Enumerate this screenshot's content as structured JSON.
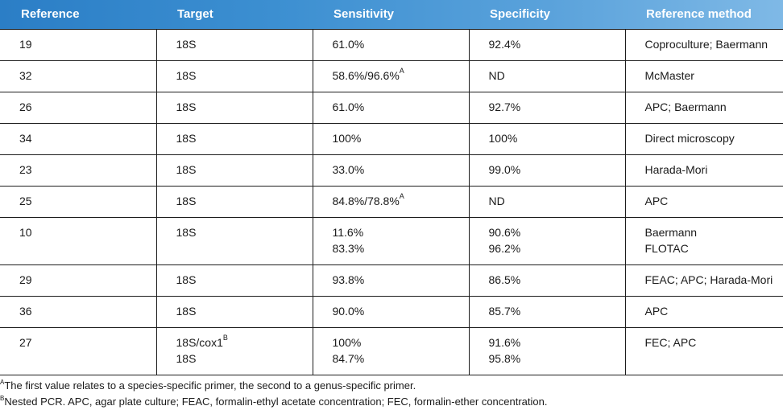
{
  "table": {
    "headers": [
      "Reference",
      "Target",
      "Sensitivity",
      "Specificity",
      "Reference method"
    ],
    "rows": [
      {
        "ref": "19",
        "target": "18S",
        "target_sup": "",
        "target2": "",
        "sens": "61.0%",
        "sens_sup": "",
        "sens2": "",
        "spec": "92.4%",
        "spec2": "",
        "method": "Coproculture; Baermann",
        "method2": ""
      },
      {
        "ref": "32",
        "target": "18S",
        "target_sup": "",
        "target2": "",
        "sens": "58.6%/96.6%",
        "sens_sup": "A",
        "sens2": "",
        "spec": "ND",
        "spec2": "",
        "method": "McMaster",
        "method2": ""
      },
      {
        "ref": "26",
        "target": "18S",
        "target_sup": "",
        "target2": "",
        "sens": "61.0%",
        "sens_sup": "",
        "sens2": "",
        "spec": "92.7%",
        "spec2": "",
        "method": "APC; Baermann",
        "method2": ""
      },
      {
        "ref": "34",
        "target": "18S",
        "target_sup": "",
        "target2": "",
        "sens": "100%",
        "sens_sup": "",
        "sens2": "",
        "spec": "100%",
        "spec2": "",
        "method": "Direct microscopy",
        "method2": ""
      },
      {
        "ref": "23",
        "target": "18S",
        "target_sup": "",
        "target2": "",
        "sens": "33.0%",
        "sens_sup": "",
        "sens2": "",
        "spec": "99.0%",
        "spec2": "",
        "method": "Harada-Mori",
        "method2": ""
      },
      {
        "ref": "25",
        "target": "18S",
        "target_sup": "",
        "target2": "",
        "sens": "84.8%/78.8%",
        "sens_sup": "A",
        "sens2": "",
        "spec": "ND",
        "spec2": "",
        "method": "APC",
        "method2": ""
      },
      {
        "ref": "10",
        "target": "18S",
        "target_sup": "",
        "target2": "",
        "sens": "11.6%",
        "sens_sup": "",
        "sens2": "83.3%",
        "spec": "90.6%",
        "spec2": "96.2%",
        "method": "Baermann",
        "method2": "FLOTAC"
      },
      {
        "ref": "29",
        "target": "18S",
        "target_sup": "",
        "target2": "",
        "sens": "93.8%",
        "sens_sup": "",
        "sens2": "",
        "spec": "86.5%",
        "spec2": "",
        "method": "FEAC; APC; Harada-Mori",
        "method2": ""
      },
      {
        "ref": "36",
        "target": "18S",
        "target_sup": "",
        "target2": "",
        "sens": "90.0%",
        "sens_sup": "",
        "sens2": "",
        "spec": "85.7%",
        "spec2": "",
        "method": "APC",
        "method2": ""
      },
      {
        "ref": "27",
        "target": "18S/cox1",
        "target_sup": "B",
        "target2": "18S",
        "sens": "100%",
        "sens_sup": "",
        "sens2": "84.7%",
        "spec": "91.6%",
        "spec2": "95.8%",
        "method": "FEC; APC",
        "method2": ""
      }
    ]
  },
  "footnotes": [
    {
      "mark": "A",
      "text": "The first value relates to a species-specific primer, the second to a genus-specific primer."
    },
    {
      "mark": "B",
      "text": "Nested PCR. APC, agar plate culture; FEAC, formalin-ethyl acetate concentration; FEC, formalin-ether concentration."
    }
  ]
}
